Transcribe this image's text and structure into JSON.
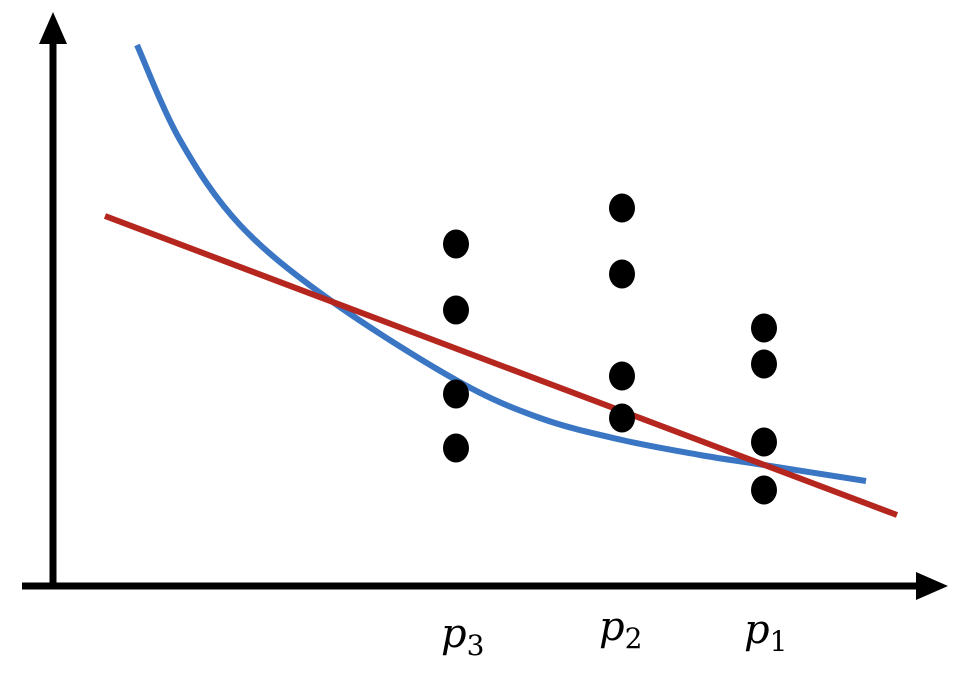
{
  "chart_data": {
    "type": "scatter",
    "title": "",
    "xlabel": "",
    "ylabel": "",
    "x_tick_labels": [
      {
        "base": "p",
        "sub": "3"
      },
      {
        "base": "p",
        "sub": "2"
      },
      {
        "base": "p",
        "sub": "1"
      }
    ],
    "series": [
      {
        "kind": "points",
        "color": "#000000",
        "points": [
          {
            "group": 0,
            "y": 0.71
          },
          {
            "group": 0,
            "y": 0.6
          },
          {
            "group": 0,
            "y": 0.46
          },
          {
            "group": 0,
            "y": 0.37
          },
          {
            "group": 1,
            "y": 0.77
          },
          {
            "group": 1,
            "y": 0.66
          },
          {
            "group": 1,
            "y": 0.49
          },
          {
            "group": 1,
            "y": 0.42
          },
          {
            "group": 2,
            "y": 0.57
          },
          {
            "group": 2,
            "y": 0.51
          },
          {
            "group": 2,
            "y": 0.38
          },
          {
            "group": 2,
            "y": 0.3
          }
        ]
      },
      {
        "kind": "curve",
        "shape": "decaying",
        "color": "#3a76c4"
      },
      {
        "kind": "line",
        "shape": "linear",
        "color": "#b5261e"
      }
    ],
    "grid": false,
    "legend": "none"
  }
}
